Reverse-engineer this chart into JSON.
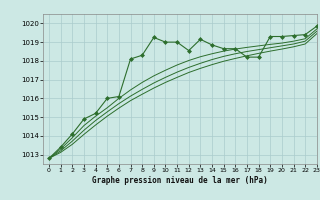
{
  "bg_color": "#cce8e4",
  "grid_color": "#aacccc",
  "line_color": "#2d6e2d",
  "title": "Graphe pression niveau de la mer (hPa)",
  "xlim": [
    -0.5,
    23
  ],
  "ylim": [
    1012.5,
    1020.5
  ],
  "yticks": [
    1013,
    1014,
    1015,
    1016,
    1017,
    1018,
    1019,
    1020
  ],
  "xticks": [
    0,
    1,
    2,
    3,
    4,
    5,
    6,
    7,
    8,
    9,
    10,
    11,
    12,
    13,
    14,
    15,
    16,
    17,
    18,
    19,
    20,
    21,
    22,
    23
  ],
  "series_main": [
    [
      0,
      1012.8
    ],
    [
      1,
      1013.4
    ],
    [
      2,
      1014.1
    ],
    [
      3,
      1014.9
    ],
    [
      4,
      1015.2
    ],
    [
      5,
      1016.0
    ],
    [
      6,
      1016.1
    ],
    [
      7,
      1018.1
    ],
    [
      8,
      1018.3
    ],
    [
      9,
      1019.25
    ],
    [
      10,
      1019.0
    ],
    [
      11,
      1019.0
    ],
    [
      12,
      1018.55
    ],
    [
      13,
      1019.15
    ],
    [
      14,
      1018.85
    ],
    [
      15,
      1018.65
    ],
    [
      16,
      1018.65
    ],
    [
      17,
      1018.2
    ],
    [
      18,
      1018.2
    ],
    [
      19,
      1019.3
    ],
    [
      20,
      1019.3
    ],
    [
      21,
      1019.35
    ],
    [
      22,
      1019.4
    ],
    [
      23,
      1019.85
    ]
  ],
  "series_smooth1": [
    [
      0,
      1012.8
    ],
    [
      1,
      1013.3
    ],
    [
      2,
      1013.9
    ],
    [
      3,
      1014.55
    ],
    [
      4,
      1015.05
    ],
    [
      5,
      1015.5
    ],
    [
      6,
      1016.0
    ],
    [
      7,
      1016.45
    ],
    [
      8,
      1016.85
    ],
    [
      9,
      1017.2
    ],
    [
      10,
      1017.5
    ],
    [
      11,
      1017.78
    ],
    [
      12,
      1018.02
    ],
    [
      13,
      1018.22
    ],
    [
      14,
      1018.38
    ],
    [
      15,
      1018.52
    ],
    [
      16,
      1018.63
    ],
    [
      17,
      1018.72
    ],
    [
      18,
      1018.8
    ],
    [
      19,
      1018.88
    ],
    [
      20,
      1018.95
    ],
    [
      21,
      1019.05
    ],
    [
      22,
      1019.18
    ],
    [
      23,
      1019.7
    ]
  ],
  "series_smooth2": [
    [
      0,
      1012.8
    ],
    [
      1,
      1013.2
    ],
    [
      2,
      1013.72
    ],
    [
      3,
      1014.3
    ],
    [
      4,
      1014.82
    ],
    [
      5,
      1015.28
    ],
    [
      6,
      1015.72
    ],
    [
      7,
      1016.12
    ],
    [
      8,
      1016.48
    ],
    [
      9,
      1016.82
    ],
    [
      10,
      1017.12
    ],
    [
      11,
      1017.4
    ],
    [
      12,
      1017.65
    ],
    [
      13,
      1017.87
    ],
    [
      14,
      1018.07
    ],
    [
      15,
      1018.24
    ],
    [
      16,
      1018.38
    ],
    [
      17,
      1018.5
    ],
    [
      18,
      1018.6
    ],
    [
      19,
      1018.7
    ],
    [
      20,
      1018.8
    ],
    [
      21,
      1018.9
    ],
    [
      22,
      1019.05
    ],
    [
      23,
      1019.58
    ]
  ],
  "series_smooth3": [
    [
      0,
      1012.8
    ],
    [
      1,
      1013.12
    ],
    [
      2,
      1013.55
    ],
    [
      3,
      1014.08
    ],
    [
      4,
      1014.58
    ],
    [
      5,
      1015.05
    ],
    [
      6,
      1015.48
    ],
    [
      7,
      1015.88
    ],
    [
      8,
      1016.22
    ],
    [
      9,
      1016.55
    ],
    [
      10,
      1016.85
    ],
    [
      11,
      1017.12
    ],
    [
      12,
      1017.38
    ],
    [
      13,
      1017.6
    ],
    [
      14,
      1017.8
    ],
    [
      15,
      1017.98
    ],
    [
      16,
      1018.13
    ],
    [
      17,
      1018.27
    ],
    [
      18,
      1018.4
    ],
    [
      19,
      1018.52
    ],
    [
      20,
      1018.63
    ],
    [
      21,
      1018.75
    ],
    [
      22,
      1018.9
    ],
    [
      23,
      1019.45
    ]
  ]
}
